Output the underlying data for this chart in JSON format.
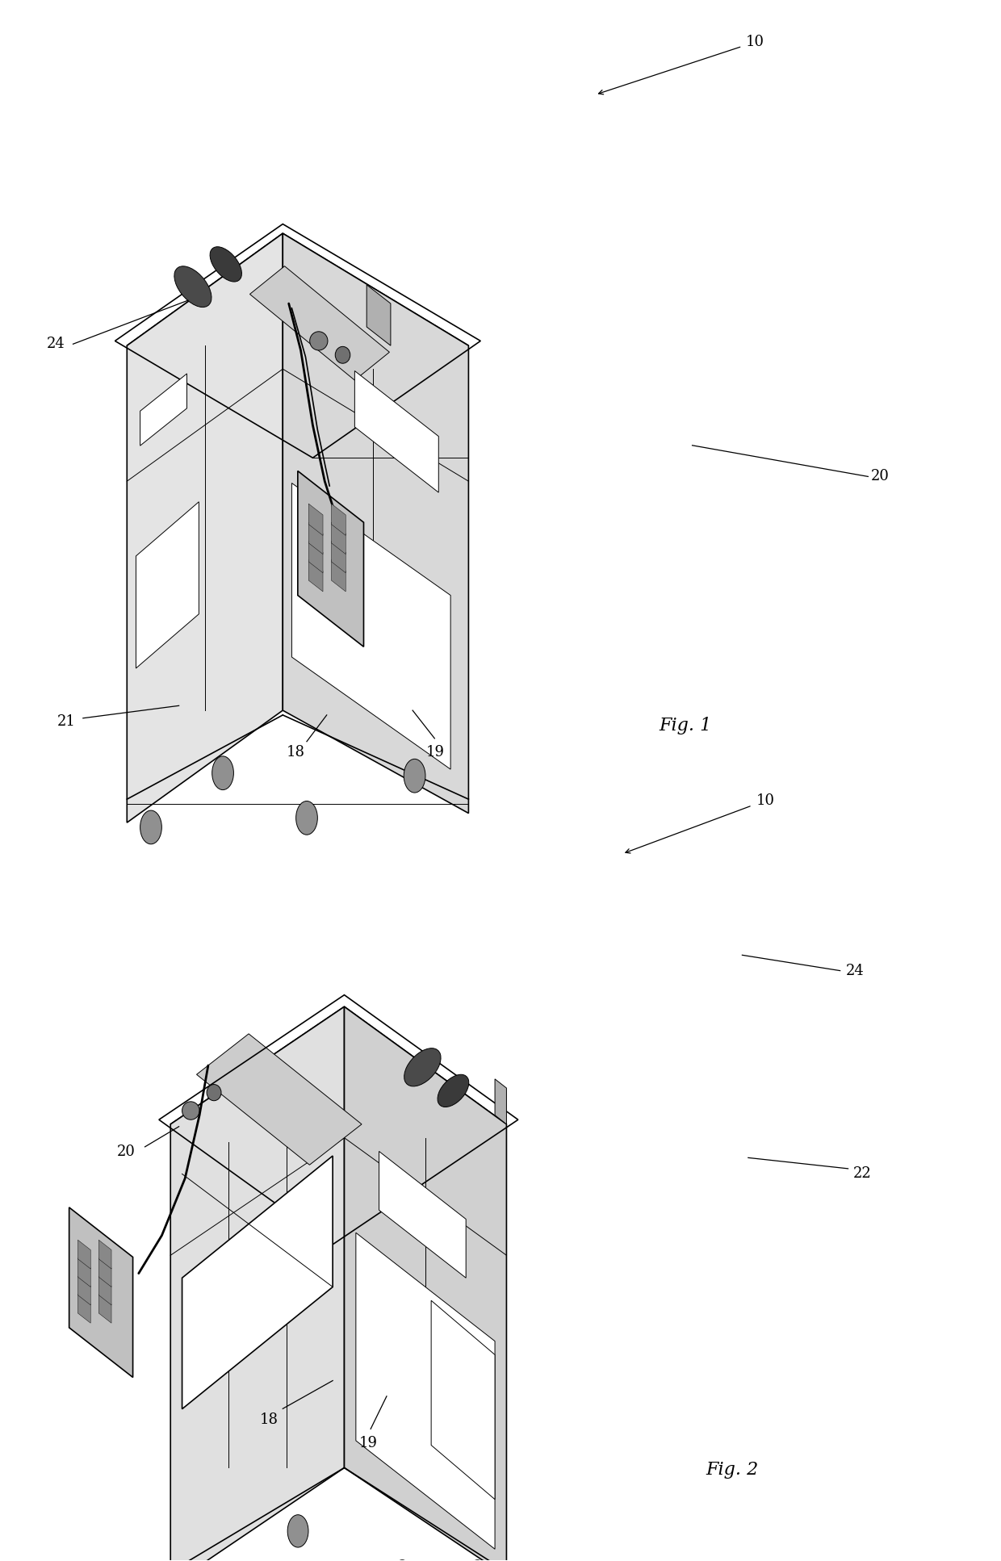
{
  "background_color": "#ffffff",
  "line_color": "#000000",
  "fig_width": 12.4,
  "fig_height": 19.34,
  "lw_main": 1.2,
  "lw_thin": 0.7,
  "label_fontsize": 13,
  "caption_fontsize": 16
}
